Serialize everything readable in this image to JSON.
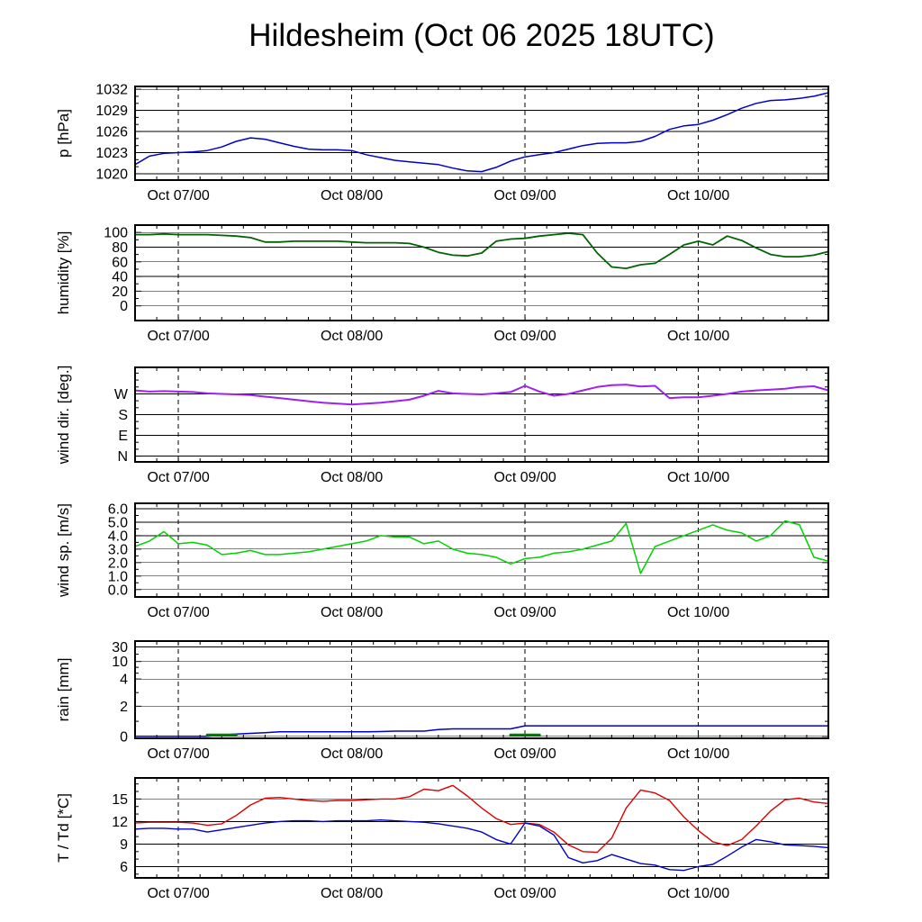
{
  "title": "Hildesheim (Oct 06 2025 18UTC)",
  "chart_data": {
    "type": "line",
    "title": "Hildesheim (Oct 06 2025 18UTC)",
    "x_axis": "time (hours since Oct 06 2025 18UTC)",
    "xlim": [
      0,
      96
    ],
    "x_minor_step_hours": 3,
    "xtick_hours": [
      6,
      30,
      54,
      78
    ],
    "xtick_labels": [
      "Oct 07/00",
      "Oct 08/00",
      "Oct 09/00",
      "Oct 10/00"
    ],
    "x_hours": [
      0,
      2,
      4,
      6,
      8,
      10,
      12,
      14,
      16,
      18,
      20,
      22,
      24,
      26,
      28,
      30,
      32,
      34,
      36,
      38,
      40,
      42,
      44,
      46,
      48,
      50,
      52,
      54,
      56,
      58,
      60,
      62,
      64,
      66,
      68,
      70,
      72,
      74,
      76,
      78,
      80,
      82,
      84,
      86,
      88,
      90,
      92,
      94,
      96
    ],
    "grid": "solid horizontal at major ticks, dashed vertical at day boundaries",
    "panels": [
      {
        "name": "pressure",
        "ylabel": "p [hPa]",
        "ylim": [
          1019.1,
          1032.4
        ],
        "yticks": [
          1020,
          1023,
          1026,
          1029,
          1032
        ],
        "yticks_minor": [
          1021,
          1022,
          1024,
          1025,
          1027,
          1028,
          1030,
          1031
        ],
        "series": [
          {
            "name": "pressure",
            "color": "#0000cc",
            "width": 1.5,
            "values": [
              1021.3,
              1022.5,
              1022.9,
              1023.0,
              1023.1,
              1023.3,
              1023.8,
              1024.6,
              1025.1,
              1024.9,
              1024.4,
              1023.9,
              1023.5,
              1023.4,
              1023.4,
              1023.3,
              1022.7,
              1022.3,
              1021.9,
              1021.7,
              1021.5,
              1021.3,
              1020.8,
              1020.4,
              1020.3,
              1020.9,
              1021.8,
              1022.4,
              1022.7,
              1023.0,
              1023.5,
              1024.0,
              1024.3,
              1024.4,
              1024.4,
              1024.6,
              1025.3,
              1026.3,
              1026.8,
              1027.0,
              1027.6,
              1028.4,
              1029.3,
              1030.0,
              1030.4,
              1030.5,
              1030.7,
              1031.0,
              1031.5
            ]
          }
        ]
      },
      {
        "name": "humidity",
        "ylabel": "humidity [%]",
        "ylim": [
          -20,
          110
        ],
        "yticks": [
          0,
          20,
          40,
          60,
          80,
          100
        ],
        "yticks_minor": [
          10,
          30,
          50,
          70,
          90
        ],
        "series": [
          {
            "name": "humidity",
            "color": "#006400",
            "width": 1.8,
            "values": [
              97,
              97,
              98,
              97,
              97,
              97,
              96,
              95,
              93,
              87,
              87,
              88,
              88,
              88,
              88,
              87,
              86,
              86,
              86,
              85,
              80,
              73,
              69,
              68,
              72,
              88,
              91,
              92,
              95,
              97,
              99,
              97,
              72,
              53,
              51,
              56,
              58,
              70,
              83,
              88,
              83,
              95,
              89,
              79,
              70,
              67,
              67,
              69,
              74
            ]
          }
        ]
      },
      {
        "name": "wind-direction",
        "ylabel": "wind dir. [deg.]",
        "ylim": [
          -25,
          385
        ],
        "yticks": [
          270,
          180,
          90,
          0
        ],
        "ytick_labels": [
          "W",
          "S",
          "E",
          "N"
        ],
        "yticks_minor": [
          30,
          60,
          120,
          150,
          210,
          240,
          300,
          330,
          360
        ],
        "series": [
          {
            "name": "wind-direction",
            "color": "#a020f0",
            "width": 2,
            "values": [
              285,
              280,
              282,
              280,
              278,
              272,
              270,
              268,
              265,
              258,
              252,
              245,
              238,
              232,
              228,
              224,
              228,
              232,
              238,
              245,
              262,
              283,
              272,
              270,
              268,
              272,
              278,
              305,
              280,
              262,
              270,
              285,
              300,
              308,
              310,
              302,
              305,
              252,
              255,
              255,
              262,
              270,
              280,
              285,
              288,
              292,
              300,
              303,
              285
            ]
          }
        ]
      },
      {
        "name": "wind-speed",
        "ylabel": "wind sp. [m/s]",
        "ylim": [
          -0.55,
          6.4
        ],
        "yticks": [
          6,
          5,
          4,
          3,
          2,
          1,
          0
        ],
        "ytick_labels": [
          "6.0",
          "5.0",
          "4.0",
          "3.0",
          "2.0",
          "1.0",
          "0.0"
        ],
        "yticks_minor": [
          0.5,
          1.5,
          2.5,
          3.5,
          4.5,
          5.5
        ],
        "series": [
          {
            "name": "wind-speed",
            "color": "#00d200",
            "width": 1.5,
            "values": [
              3.2,
              3.6,
              4.3,
              3.4,
              3.5,
              3.3,
              2.6,
              2.7,
              2.9,
              2.6,
              2.6,
              2.7,
              2.8,
              3.0,
              3.2,
              3.4,
              3.6,
              4.0,
              3.9,
              3.9,
              3.4,
              3.6,
              3.0,
              2.7,
              2.6,
              2.4,
              1.9,
              2.3,
              2.4,
              2.7,
              2.8,
              3.0,
              3.3,
              3.6,
              4.9,
              1.2,
              3.2,
              3.6,
              4.0,
              4.4,
              4.8,
              4.4,
              4.2,
              3.6,
              4.0,
              5.1,
              4.8,
              2.4,
              2.1
            ]
          }
        ]
      },
      {
        "name": "rain",
        "ylabel": "rain [mm]",
        "scale": "segmented",
        "scale_anchors": [
          [
            0,
            0.02
          ],
          [
            2,
            0.33
          ],
          [
            4,
            0.61
          ],
          [
            10,
            0.79
          ],
          [
            30,
            0.94
          ],
          [
            60,
            1.0
          ]
        ],
        "ylim": [
          0,
          60
        ],
        "yticks": [
          30,
          10,
          4,
          2,
          0
        ],
        "yticks_minor": [
          1,
          3,
          6,
          8,
          20
        ],
        "series": [
          {
            "name": "rain-accumulated",
            "color": "#0000cc",
            "width": 1.5,
            "values": [
              0,
              0,
              0,
              0,
              0,
              0,
              0.1,
              0.15,
              0.2,
              0.25,
              0.3,
              0.3,
              0.3,
              0.3,
              0.3,
              0.3,
              0.3,
              0.32,
              0.35,
              0.35,
              0.35,
              0.45,
              0.5,
              0.5,
              0.5,
              0.5,
              0.5,
              0.7,
              0.7,
              0.7,
              0.7,
              0.7,
              0.7,
              0.7,
              0.7,
              0.7,
              0.7,
              0.7,
              0.7,
              0.7,
              0.7,
              0.7,
              0.7,
              0.7,
              0.7,
              0.7,
              0.7,
              0.7,
              0.7
            ]
          },
          {
            "name": "rain-green-interval",
            "color": "#008000",
            "width": 3,
            "values": [
              null,
              null,
              null,
              null,
              null,
              0.1,
              0.1,
              0.1,
              null,
              null,
              null,
              null,
              null,
              null,
              null,
              null,
              null,
              null,
              null,
              null,
              null,
              null,
              null,
              null,
              null,
              null,
              0.1,
              0.1,
              0.1,
              null,
              null,
              null,
              null,
              null,
              null,
              null,
              null,
              null,
              null,
              null,
              null,
              null,
              null,
              null,
              null,
              null,
              null,
              null,
              null
            ]
          }
        ]
      },
      {
        "name": "temperature",
        "ylabel": "T / Td [*C]",
        "ylim": [
          4.5,
          17.8
        ],
        "yticks": [
          15,
          12,
          9,
          6
        ],
        "yticks_minor": [
          5,
          7,
          8,
          10,
          11,
          13,
          14,
          16,
          17
        ],
        "series": [
          {
            "name": "temperature",
            "color": "#dd0000",
            "width": 1.4,
            "values": [
              11.8,
              11.9,
              11.9,
              11.9,
              11.8,
              11.5,
              11.7,
              12.8,
              14.2,
              15.1,
              15.2,
              15.0,
              14.8,
              14.7,
              14.8,
              14.8,
              14.9,
              15.0,
              15.0,
              15.3,
              16.3,
              16.1,
              16.8,
              15.4,
              13.8,
              12.4,
              11.6,
              11.8,
              11.6,
              10.6,
              8.9,
              8.0,
              7.9,
              9.8,
              13.8,
              16.2,
              15.8,
              14.8,
              12.6,
              10.8,
              9.3,
              8.8,
              9.6,
              11.4,
              13.4,
              14.9,
              15.1,
              14.6,
              14.4
            ]
          },
          {
            "name": "dewpoint",
            "color": "#0000cc",
            "width": 1.4,
            "values": [
              11.0,
              11.1,
              11.1,
              11.0,
              11.0,
              10.6,
              10.9,
              11.2,
              11.5,
              11.8,
              12.0,
              12.1,
              12.1,
              12.0,
              12.1,
              12.1,
              12.1,
              12.2,
              12.1,
              12.0,
              11.9,
              11.7,
              11.4,
              11.1,
              10.6,
              9.6,
              9.0,
              11.8,
              11.4,
              10.2,
              7.2,
              6.5,
              6.8,
              7.6,
              7.0,
              6.4,
              6.2,
              5.6,
              5.5,
              6.0,
              6.3,
              7.4,
              8.6,
              9.6,
              9.3,
              8.9,
              8.8,
              8.7,
              8.5
            ]
          }
        ]
      }
    ]
  }
}
